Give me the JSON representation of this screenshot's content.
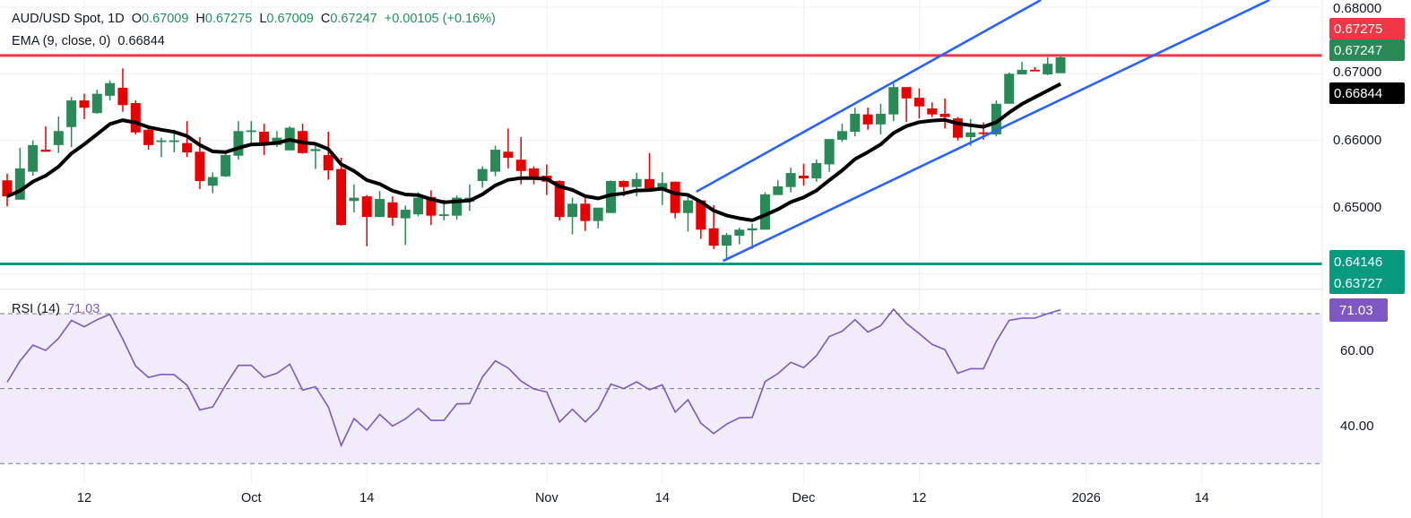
{
  "header": {
    "symbol": "AUD/USD Spot, 1D",
    "open_label": "O",
    "open": "0.67009",
    "high_label": "H",
    "high": "0.67275",
    "low_label": "L",
    "low": "0.67009",
    "close_label": "C",
    "close": "0.67247",
    "change": "+0.00105 (+0.16%)",
    "ema_label": "EMA (9, close, 0)",
    "ema_value": "0.66844"
  },
  "rsi_legend": {
    "label": "RSI (14)",
    "value": "71.03"
  },
  "colors": {
    "up": "#2a8a57",
    "down": "#e60000",
    "ema": "#000000",
    "channel": "#2962ff",
    "resistance": "#f23645",
    "support": "#089981",
    "rsi": "#7e57c2",
    "rsi_band": "#f0ecf9",
    "last_price": "#2a8a57"
  },
  "chart_data": [
    {
      "type": "candlestick",
      "title": "AUD/USD Spot, 1D",
      "ylim": [
        0.6355,
        0.6811
      ],
      "y_ticks": [
        "0.68000",
        "0.67000",
        "0.66000",
        "0.65000"
      ],
      "y_tick_values": [
        0.68,
        0.67,
        0.66,
        0.65,
        0.64
      ],
      "grid": true,
      "x_ticks": [
        {
          "label": "12",
          "date": "2025-09-12"
        },
        {
          "label": "Oct",
          "date": "2025-10-01"
        },
        {
          "label": "14",
          "date": "2025-10-14"
        },
        {
          "label": "Nov",
          "date": "2025-11-03"
        },
        {
          "label": "14",
          "date": "2025-11-14"
        },
        {
          "label": "Dec",
          "date": "2025-12-01"
        },
        {
          "label": "12",
          "date": "2025-12-12"
        },
        {
          "label": "2026",
          "date": "2026-01-01"
        },
        {
          "label": "14",
          "date": "2026-01-14"
        }
      ],
      "candles_columns": [
        "date",
        "open",
        "high",
        "low",
        "close"
      ],
      "candles": [
        [
          "2025-09-04",
          0.654,
          0.655,
          0.6501,
          0.6516
        ],
        [
          "2025-09-05",
          0.6511,
          0.6589,
          0.6511,
          0.6558
        ],
        [
          "2025-09-08",
          0.6553,
          0.66,
          0.6547,
          0.6593
        ],
        [
          "2025-09-09",
          0.6586,
          0.6621,
          0.6583,
          0.6583
        ],
        [
          "2025-09-10",
          0.6593,
          0.6636,
          0.6581,
          0.6614
        ],
        [
          "2025-09-11",
          0.662,
          0.6665,
          0.659,
          0.666
        ],
        [
          "2025-09-12",
          0.666,
          0.667,
          0.6632,
          0.6649
        ],
        [
          "2025-09-15",
          0.6641,
          0.6676,
          0.664,
          0.667
        ],
        [
          "2025-09-16",
          0.6667,
          0.669,
          0.666,
          0.6686
        ],
        [
          "2025-09-17",
          0.6679,
          0.6708,
          0.6643,
          0.6653
        ],
        [
          "2025-09-18",
          0.6656,
          0.666,
          0.6609,
          0.6612
        ],
        [
          "2025-09-19",
          0.6616,
          0.6621,
          0.6586,
          0.6593
        ],
        [
          "2025-09-22",
          0.6599,
          0.6604,
          0.6575,
          0.66
        ],
        [
          "2025-09-23",
          0.6599,
          0.6616,
          0.6582,
          0.66
        ],
        [
          "2025-09-24",
          0.6596,
          0.6629,
          0.6575,
          0.6582
        ],
        [
          "2025-09-25",
          0.6583,
          0.6605,
          0.6527,
          0.6539
        ],
        [
          "2025-09-26",
          0.6532,
          0.6552,
          0.6521,
          0.6545
        ],
        [
          "2025-09-29",
          0.6546,
          0.6582,
          0.6545,
          0.6578
        ],
        [
          "2025-09-30",
          0.6577,
          0.6629,
          0.6571,
          0.6614
        ],
        [
          "2025-10-01",
          0.6613,
          0.6629,
          0.6592,
          0.6615
        ],
        [
          "2025-10-02",
          0.6613,
          0.6625,
          0.6578,
          0.6596
        ],
        [
          "2025-10-03",
          0.6593,
          0.6614,
          0.659,
          0.6604
        ],
        [
          "2025-10-06",
          0.6585,
          0.6621,
          0.6585,
          0.6619
        ],
        [
          "2025-10-07",
          0.6614,
          0.6625,
          0.658,
          0.6581
        ],
        [
          "2025-10-08",
          0.6584,
          0.6592,
          0.6557,
          0.6587
        ],
        [
          "2025-10-09",
          0.6578,
          0.6613,
          0.6541,
          0.6555
        ],
        [
          "2025-10-10",
          0.6557,
          0.6574,
          0.6472,
          0.6473
        ],
        [
          "2025-10-13",
          0.6509,
          0.6534,
          0.6492,
          0.6514
        ],
        [
          "2025-10-14",
          0.6516,
          0.6518,
          0.6441,
          0.6485
        ],
        [
          "2025-10-15",
          0.6485,
          0.6524,
          0.6485,
          0.6512
        ],
        [
          "2025-10-16",
          0.6507,
          0.6516,
          0.6472,
          0.6484
        ],
        [
          "2025-10-17",
          0.6483,
          0.6502,
          0.6443,
          0.6496
        ],
        [
          "2025-10-20",
          0.6489,
          0.6522,
          0.6486,
          0.6514
        ],
        [
          "2025-10-21",
          0.6515,
          0.6525,
          0.6473,
          0.6487
        ],
        [
          "2025-10-22",
          0.6487,
          0.6511,
          0.648,
          0.6489
        ],
        [
          "2025-10-23",
          0.6487,
          0.6517,
          0.6481,
          0.6514
        ],
        [
          "2025-10-24",
          0.6508,
          0.6534,
          0.6494,
          0.6514
        ],
        [
          "2025-10-27",
          0.6539,
          0.6561,
          0.6529,
          0.6557
        ],
        [
          "2025-10-28",
          0.6553,
          0.6592,
          0.6546,
          0.6586
        ],
        [
          "2025-10-29",
          0.6583,
          0.6618,
          0.6558,
          0.6574
        ],
        [
          "2025-10-30",
          0.6571,
          0.6605,
          0.6534,
          0.6554
        ],
        [
          "2025-10-31",
          0.6558,
          0.6561,
          0.6534,
          0.6543
        ],
        [
          "2025-11-03",
          0.6547,
          0.6564,
          0.6518,
          0.6538
        ],
        [
          "2025-11-04",
          0.6539,
          0.654,
          0.648,
          0.6485
        ],
        [
          "2025-11-05",
          0.6485,
          0.6514,
          0.6459,
          0.6505
        ],
        [
          "2025-11-06",
          0.6505,
          0.6519,
          0.6464,
          0.6479
        ],
        [
          "2025-11-07",
          0.6479,
          0.6499,
          0.6468,
          0.6499
        ],
        [
          "2025-11-10",
          0.6491,
          0.654,
          0.6491,
          0.6539
        ],
        [
          "2025-11-11",
          0.6539,
          0.654,
          0.6516,
          0.653
        ],
        [
          "2025-11-12",
          0.653,
          0.6551,
          0.6516,
          0.6542
        ],
        [
          "2025-11-13",
          0.6542,
          0.6581,
          0.6524,
          0.6528
        ],
        [
          "2025-11-14",
          0.6528,
          0.6552,
          0.6503,
          0.6536
        ],
        [
          "2025-11-17",
          0.6538,
          0.6538,
          0.6483,
          0.6491
        ],
        [
          "2025-11-18",
          0.6491,
          0.6519,
          0.6463,
          0.651
        ],
        [
          "2025-11-19",
          0.651,
          0.651,
          0.6452,
          0.6466
        ],
        [
          "2025-11-20",
          0.6468,
          0.6503,
          0.6437,
          0.6442
        ],
        [
          "2025-11-21",
          0.6442,
          0.6461,
          0.6422,
          0.6458
        ],
        [
          "2025-11-24",
          0.6457,
          0.6469,
          0.6444,
          0.6466
        ],
        [
          "2025-11-25",
          0.6465,
          0.6475,
          0.6437,
          0.6468
        ],
        [
          "2025-11-26",
          0.6466,
          0.6522,
          0.6466,
          0.6519
        ],
        [
          "2025-11-27",
          0.6518,
          0.654,
          0.6518,
          0.6531
        ],
        [
          "2025-11-28",
          0.653,
          0.6559,
          0.6522,
          0.6551
        ],
        [
          "2025-12-01",
          0.6547,
          0.6565,
          0.6532,
          0.6543
        ],
        [
          "2025-12-02",
          0.6543,
          0.6571,
          0.6538,
          0.6566
        ],
        [
          "2025-12-03",
          0.6564,
          0.6602,
          0.6553,
          0.6602
        ],
        [
          "2025-12-04",
          0.6601,
          0.6625,
          0.6598,
          0.6614
        ],
        [
          "2025-12-05",
          0.6613,
          0.6649,
          0.6606,
          0.664
        ],
        [
          "2025-12-08",
          0.6639,
          0.6649,
          0.6616,
          0.6624
        ],
        [
          "2025-12-09",
          0.6624,
          0.6655,
          0.6609,
          0.664
        ],
        [
          "2025-12-10",
          0.6639,
          0.6686,
          0.6629,
          0.668
        ],
        [
          "2025-12-11",
          0.668,
          0.668,
          0.6628,
          0.6663
        ],
        [
          "2025-12-12",
          0.6664,
          0.6678,
          0.6633,
          0.6651
        ],
        [
          "2025-12-15",
          0.6648,
          0.6657,
          0.6635,
          0.6639
        ],
        [
          "2025-12-16",
          0.664,
          0.6663,
          0.6618,
          0.6635
        ],
        [
          "2025-12-17",
          0.6633,
          0.6635,
          0.66,
          0.6604
        ],
        [
          "2025-12-18",
          0.6605,
          0.6632,
          0.6592,
          0.6612
        ],
        [
          "2025-12-19",
          0.6612,
          0.6627,
          0.6601,
          0.6611
        ],
        [
          "2025-12-22",
          0.6609,
          0.666,
          0.6606,
          0.6655
        ],
        [
          "2025-12-23",
          0.6655,
          0.6702,
          0.6655,
          0.67
        ],
        [
          "2025-12-24",
          0.6699,
          0.6718,
          0.6699,
          0.6706
        ],
        [
          "2025-12-26",
          0.6706,
          0.671,
          0.6705,
          0.6705
        ],
        [
          "2025-12-29",
          0.6699,
          0.6725,
          0.6698,
          0.6715
        ],
        [
          "2025-12-30",
          0.67009,
          0.67275,
          0.67009,
          0.67247
        ]
      ],
      "ema": {
        "name": "EMA (9, close, 0)",
        "period": 9,
        "last": 0.66844
      },
      "horizontal_lines": [
        {
          "price": 0.67275,
          "label": "0.67275",
          "color": "#f23645"
        },
        {
          "price": 0.64146,
          "label": "0.64146",
          "color": "#089981"
        }
      ],
      "channel": {
        "upper": [
          [
            "2025-11-19",
            0.6523
          ],
          [
            "2025-12-24",
            0.6795
          ]
        ],
        "lower": [
          [
            "2025-11-21",
            0.6419
          ],
          [
            "2025-12-30",
            0.6661
          ]
        ]
      },
      "price_tags": {
        "high": "0.67275",
        "last": "0.67247",
        "ema": "0.66844",
        "support": "0.64146",
        "extra": "0.63727"
      }
    },
    {
      "type": "line",
      "title": "RSI (14)",
      "ylim": [
        25,
        75
      ],
      "y_ticks": [
        "60.00",
        "40.00"
      ],
      "levels": [
        70,
        50,
        30
      ],
      "last": "71.03",
      "values": [
        51.7,
        57.4,
        61.6,
        60.2,
        63.4,
        68.2,
        66.5,
        68.4,
        69.8,
        63.2,
        56.0,
        53.0,
        53.8,
        53.7,
        50.9,
        44.3,
        45.1,
        50.9,
        56.2,
        56.2,
        53.0,
        54.1,
        56.5,
        49.6,
        50.5,
        45.1,
        34.8,
        42.0,
        38.9,
        43.1,
        40.0,
        41.9,
        44.7,
        41.5,
        41.5,
        45.9,
        46.0,
        53.1,
        57.4,
        55.5,
        52.0,
        49.9,
        49.1,
        41.1,
        44.5,
        41.1,
        44.5,
        51.2,
        50.0,
        51.8,
        49.7,
        51.0,
        43.7,
        47.0,
        40.8,
        38.0,
        40.5,
        42.2,
        42.3,
        51.9,
        54.0,
        57.0,
        55.6,
        58.8,
        63.9,
        65.3,
        68.4,
        65.1,
        66.8,
        71.2,
        67.4,
        64.7,
        61.8,
        60.4,
        54.1,
        55.3,
        55.3,
        62.6,
        68.2,
        68.8,
        68.8,
        70.0,
        71.03
      ]
    }
  ]
}
